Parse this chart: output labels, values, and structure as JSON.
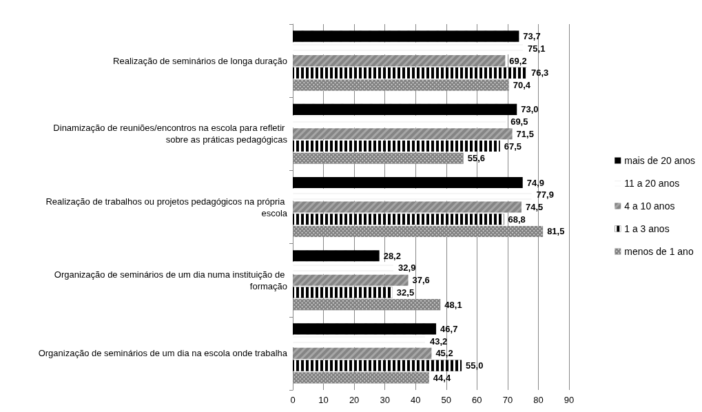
{
  "chart_data": {
    "type": "bar",
    "orientation": "horizontal",
    "categories": [
      "Realização de seminários de longa duração",
      "Dinamização de reuniões/encontros na escola para refletir sobre as práticas pedagógicas",
      "Realização de trabalhos ou projetos pedagógicos na própria escola",
      "Organização de seminários de um dia numa instituição de formação",
      "Organização de seminários de um dia na escola onde trabalha"
    ],
    "series": [
      {
        "name": "mais de 20 anos",
        "color": "#000000",
        "values": [
          73.7,
          73.0,
          74.9,
          28.2,
          46.7
        ],
        "value_labels": [
          "73,7",
          "73,0",
          "74,9",
          "28,2",
          "46,7"
        ]
      },
      {
        "name": "11 a 20 anos",
        "color": "#ffffff",
        "values": [
          75.1,
          69.5,
          77.9,
          32.9,
          43.2
        ],
        "value_labels": [
          "75,1",
          "69,5",
          "77,9",
          "32,9",
          "43,2"
        ]
      },
      {
        "name": "4 a 10 anos",
        "color": "#a6a6a6",
        "values": [
          69.2,
          71.5,
          74.5,
          37.6,
          45.2
        ],
        "value_labels": [
          "69,2",
          "71,5",
          "74,5",
          "37,6",
          "45,2"
        ]
      },
      {
        "name": "1 a 3 anos",
        "color": "#000000",
        "values": [
          76.3,
          67.5,
          68.8,
          32.5,
          55.0
        ],
        "value_labels": [
          "76,3",
          "67,5",
          "68,8",
          "32,5",
          "55,0"
        ]
      },
      {
        "name": "menos de 1 ano",
        "color": "#808080",
        "values": [
          70.4,
          55.6,
          81.5,
          48.1,
          44.4
        ],
        "value_labels": [
          "70,4",
          "55,6",
          "81,5",
          "48,1",
          "44,4"
        ]
      }
    ],
    "xlim": [
      0,
      90
    ],
    "xticks": [
      0,
      10,
      20,
      30,
      40,
      50,
      60,
      70,
      80,
      90
    ],
    "grid": "x",
    "legend": "right"
  }
}
